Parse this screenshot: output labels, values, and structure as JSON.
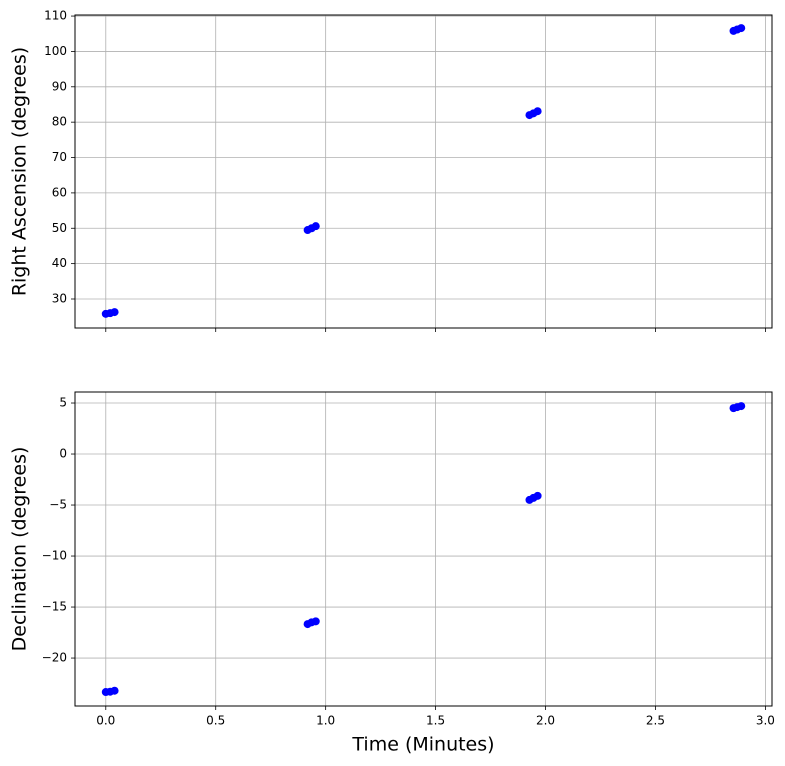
{
  "chart_data": [
    {
      "type": "scatter",
      "ylabel": "Right Ascension (degrees)",
      "grid": true,
      "xlim": [
        -0.14,
        3.03
      ],
      "xticks": [
        0,
        0.5,
        1,
        1.5,
        2,
        2.5,
        3
      ],
      "ylim": [
        21.8,
        110.3
      ],
      "yticks": [
        30,
        40,
        50,
        60,
        70,
        80,
        90,
        100,
        110
      ],
      "series": [
        {
          "color": "#0000ff",
          "x": [
            0.0,
            0.02,
            0.04,
            0.918,
            0.936,
            0.955,
            1.927,
            1.945,
            1.964,
            2.855,
            2.872,
            2.89
          ],
          "values": [
            25.8,
            26.0,
            26.3,
            49.5,
            50.0,
            50.6,
            82.0,
            82.5,
            83.1,
            105.8,
            106.2,
            106.6
          ]
        }
      ]
    },
    {
      "type": "scatter",
      "ylabel": "Declination (degrees)",
      "xlabel": "Time (Minutes)",
      "grid": true,
      "xlim": [
        -0.14,
        3.03
      ],
      "xticks": [
        {
          "value": 0,
          "label": "0.0"
        },
        {
          "value": 0.5,
          "label": "0.5"
        },
        {
          "value": 1,
          "label": "1.0"
        },
        {
          "value": 1.5,
          "label": "1.5"
        },
        {
          "value": 2,
          "label": "2.0"
        },
        {
          "value": 2.5,
          "label": "2.5"
        },
        {
          "value": 3,
          "label": "3.0"
        }
      ],
      "ylim": [
        -24.7,
        6.08
      ],
      "yticks": [
        {
          "value": -20,
          "label": "−20"
        },
        {
          "value": -15,
          "label": "−15"
        },
        {
          "value": -10,
          "label": "−10"
        },
        {
          "value": -5,
          "label": "−5"
        },
        0,
        5
      ],
      "series": [
        {
          "color": "#0000ff",
          "x": [
            0.0,
            0.02,
            0.04,
            0.918,
            0.936,
            0.955,
            1.927,
            1.945,
            1.964,
            2.855,
            2.872,
            2.89
          ],
          "values": [
            -23.33,
            -23.3,
            -23.2,
            -16.67,
            -16.5,
            -16.4,
            -4.5,
            -4.3,
            -4.1,
            4.5,
            4.6,
            4.7
          ]
        }
      ]
    }
  ]
}
